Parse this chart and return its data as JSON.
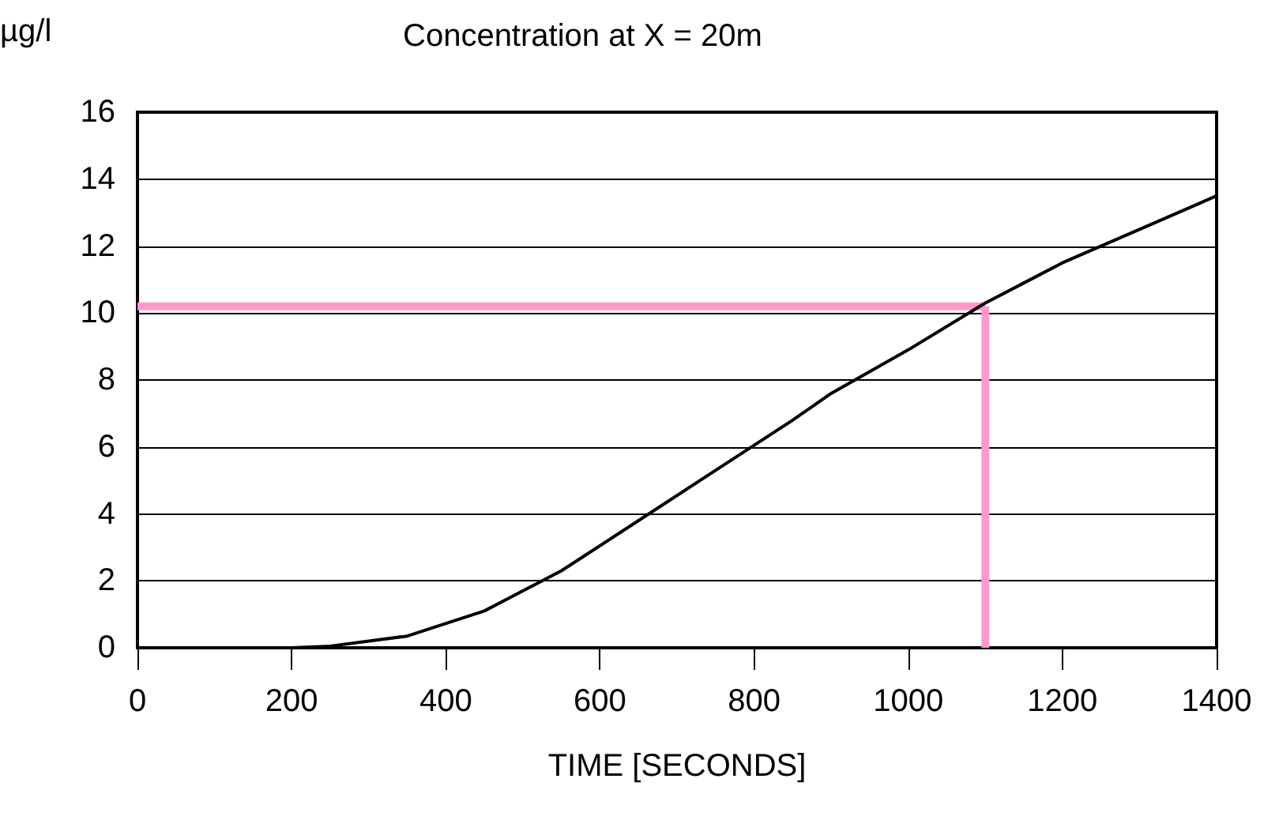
{
  "chart_data": {
    "type": "line",
    "title": "Concentration at X = 20m",
    "ylabel": "µg/l",
    "xlabel": "TIME [SECONDS]",
    "x": [
      0,
      200,
      250,
      350,
      450,
      550,
      650,
      750,
      850,
      900,
      1000,
      1100,
      1150,
      1200,
      1300,
      1400
    ],
    "series": [
      {
        "color": "#000000",
        "values": [
          0,
          0,
          0.05,
          0.35,
          1.1,
          2.3,
          3.8,
          5.3,
          6.8,
          7.6,
          8.9,
          10.3,
          10.9,
          11.5,
          12.5,
          13.5
        ]
      }
    ],
    "xlim": [
      0,
      1400
    ],
    "xticks": [
      0,
      200,
      400,
      600,
      800,
      1000,
      1200,
      1400
    ],
    "ylim": [
      0,
      16
    ],
    "yticks": [
      0,
      2,
      4,
      6,
      8,
      10,
      12,
      14,
      16
    ],
    "grid": "y",
    "marker": "none",
    "line_style": "solid",
    "ref_lines": [
      {
        "axis": "y",
        "value": 10.2,
        "color": "#ff99cc"
      },
      {
        "axis": "x",
        "value": 1100,
        "color": "#ff99cc"
      }
    ]
  }
}
